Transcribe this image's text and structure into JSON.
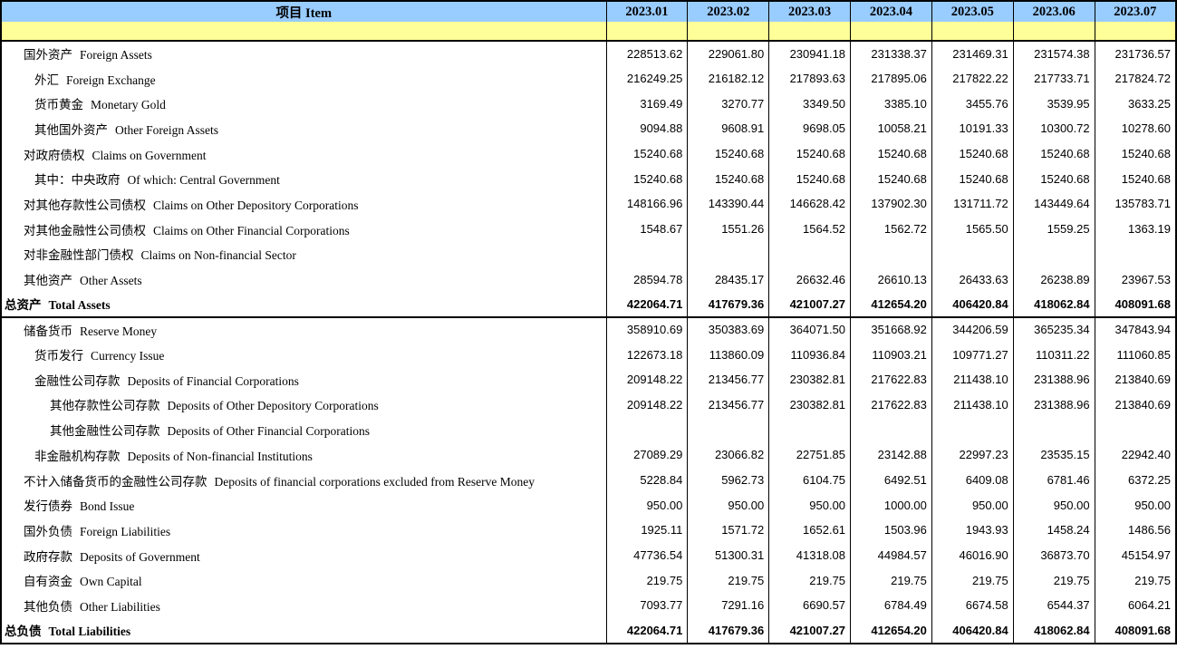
{
  "colors": {
    "header_bg": "#99CCFF",
    "spacer_bg": "#FFFF99",
    "border": "#000000",
    "text": "#000000"
  },
  "header": {
    "item_label": "项目  Item",
    "periods": [
      "2023.01",
      "2023.02",
      "2023.03",
      "2023.04",
      "2023.05",
      "2023.06",
      "2023.07"
    ]
  },
  "rows": [
    {
      "cn": "国外资产",
      "en": "Foreign Assets",
      "indent": 1,
      "bold": false,
      "section_end": false,
      "values": [
        "228513.62",
        "229061.80",
        "230941.18",
        "231338.37",
        "231469.31",
        "231574.38",
        "231736.57"
      ]
    },
    {
      "cn": "外汇",
      "en": "Foreign Exchange",
      "indent": 2,
      "bold": false,
      "section_end": false,
      "values": [
        "216249.25",
        "216182.12",
        "217893.63",
        "217895.06",
        "217822.22",
        "217733.71",
        "217824.72"
      ]
    },
    {
      "cn": "货币黄金",
      "en": "Monetary Gold",
      "indent": 2,
      "bold": false,
      "section_end": false,
      "values": [
        "3169.49",
        "3270.77",
        "3349.50",
        "3385.10",
        "3455.76",
        "3539.95",
        "3633.25"
      ]
    },
    {
      "cn": "其他国外资产",
      "en": "Other Foreign Assets",
      "indent": 2,
      "bold": false,
      "section_end": false,
      "values": [
        "9094.88",
        "9608.91",
        "9698.05",
        "10058.21",
        "10191.33",
        "10300.72",
        "10278.60"
      ]
    },
    {
      "cn": "对政府债权",
      "en": "Claims on Government",
      "indent": 1,
      "bold": false,
      "section_end": false,
      "values": [
        "15240.68",
        "15240.68",
        "15240.68",
        "15240.68",
        "15240.68",
        "15240.68",
        "15240.68"
      ]
    },
    {
      "cn": "其中：中央政府",
      "en": "Of which: Central Government",
      "indent": 2,
      "bold": false,
      "section_end": false,
      "values": [
        "15240.68",
        "15240.68",
        "15240.68",
        "15240.68",
        "15240.68",
        "15240.68",
        "15240.68"
      ]
    },
    {
      "cn": "对其他存款性公司债权",
      "en": "Claims on Other Depository Corporations",
      "indent": 1,
      "bold": false,
      "section_end": false,
      "values": [
        "148166.96",
        "143390.44",
        "146628.42",
        "137902.30",
        "131711.72",
        "143449.64",
        "135783.71"
      ]
    },
    {
      "cn": "对其他金融性公司债权",
      "en": "Claims on Other Financial Corporations",
      "indent": 1,
      "bold": false,
      "section_end": false,
      "values": [
        "1548.67",
        "1551.26",
        "1564.52",
        "1562.72",
        "1565.50",
        "1559.25",
        "1363.19"
      ]
    },
    {
      "cn": "对非金融性部门债权",
      "en": "Claims on Non-financial Sector",
      "indent": 1,
      "bold": false,
      "section_end": false,
      "values": [
        "",
        "",
        "",
        "",
        "",
        "",
        ""
      ]
    },
    {
      "cn": "其他资产",
      "en": "Other Assets",
      "indent": 1,
      "bold": false,
      "section_end": false,
      "values": [
        "28594.78",
        "28435.17",
        "26632.46",
        "26610.13",
        "26433.63",
        "26238.89",
        "23967.53"
      ]
    },
    {
      "cn": "总资产",
      "en": "Total Assets",
      "indent": 0,
      "bold": true,
      "section_end": true,
      "values": [
        "422064.71",
        "417679.36",
        "421007.27",
        "412654.20",
        "406420.84",
        "418062.84",
        "408091.68"
      ]
    },
    {
      "cn": "储备货币",
      "en": "Reserve Money",
      "indent": 1,
      "bold": false,
      "section_end": false,
      "values": [
        "358910.69",
        "350383.69",
        "364071.50",
        "351668.92",
        "344206.59",
        "365235.34",
        "347843.94"
      ]
    },
    {
      "cn": "货币发行",
      "en": "Currency Issue",
      "indent": 2,
      "bold": false,
      "section_end": false,
      "values": [
        "122673.18",
        "113860.09",
        "110936.84",
        "110903.21",
        "109771.27",
        "110311.22",
        "111060.85"
      ]
    },
    {
      "cn": "金融性公司存款",
      "en": "Deposits of Financial Corporations",
      "indent": 2,
      "bold": false,
      "section_end": false,
      "values": [
        "209148.22",
        "213456.77",
        "230382.81",
        "217622.83",
        "211438.10",
        "231388.96",
        "213840.69"
      ]
    },
    {
      "cn": "其他存款性公司存款",
      "en": "Deposits of Other Depository Corporations",
      "indent": 3,
      "bold": false,
      "section_end": false,
      "values": [
        "209148.22",
        "213456.77",
        "230382.81",
        "217622.83",
        "211438.10",
        "231388.96",
        "213840.69"
      ]
    },
    {
      "cn": "其他金融性公司存款",
      "en": "Deposits of Other Financial Corporations",
      "indent": 3,
      "bold": false,
      "section_end": false,
      "values": [
        "",
        "",
        "",
        "",
        "",
        "",
        ""
      ]
    },
    {
      "cn": "非金融机构存款",
      "en": "Deposits of Non-financial Institutions",
      "indent": 2,
      "bold": false,
      "section_end": false,
      "values": [
        "27089.29",
        "23066.82",
        "22751.85",
        "23142.88",
        "22997.23",
        "23535.15",
        "22942.40"
      ]
    },
    {
      "cn": "不计入储备货币的金融性公司存款",
      "en": "Deposits of financial corporations excluded from Reserve Money",
      "indent": 1,
      "bold": false,
      "section_end": false,
      "values": [
        "5228.84",
        "5962.73",
        "6104.75",
        "6492.51",
        "6409.08",
        "6781.46",
        "6372.25"
      ]
    },
    {
      "cn": "发行债券",
      "en": "Bond Issue",
      "indent": 1,
      "bold": false,
      "section_end": false,
      "values": [
        "950.00",
        "950.00",
        "950.00",
        "1000.00",
        "950.00",
        "950.00",
        "950.00"
      ]
    },
    {
      "cn": "国外负债",
      "en": "Foreign Liabilities",
      "indent": 1,
      "bold": false,
      "section_end": false,
      "values": [
        "1925.11",
        "1571.72",
        "1652.61",
        "1503.96",
        "1943.93",
        "1458.24",
        "1486.56"
      ]
    },
    {
      "cn": "政府存款",
      "en": "Deposits of Government",
      "indent": 1,
      "bold": false,
      "section_end": false,
      "values": [
        "47736.54",
        "51300.31",
        "41318.08",
        "44984.57",
        "46016.90",
        "36873.70",
        "45154.97"
      ]
    },
    {
      "cn": "自有资金",
      "en": "Own Capital",
      "indent": 1,
      "bold": false,
      "section_end": false,
      "values": [
        "219.75",
        "219.75",
        "219.75",
        "219.75",
        "219.75",
        "219.75",
        "219.75"
      ]
    },
    {
      "cn": "其他负债",
      "en": "Other Liabilities",
      "indent": 1,
      "bold": false,
      "section_end": false,
      "values": [
        "7093.77",
        "7291.16",
        "6690.57",
        "6784.49",
        "6674.58",
        "6544.37",
        "6064.21"
      ]
    },
    {
      "cn": "总负债",
      "en": "Total Liabilities",
      "indent": 0,
      "bold": true,
      "section_end": false,
      "values": [
        "422064.71",
        "417679.36",
        "421007.27",
        "412654.20",
        "406420.84",
        "418062.84",
        "408091.68"
      ]
    }
  ]
}
